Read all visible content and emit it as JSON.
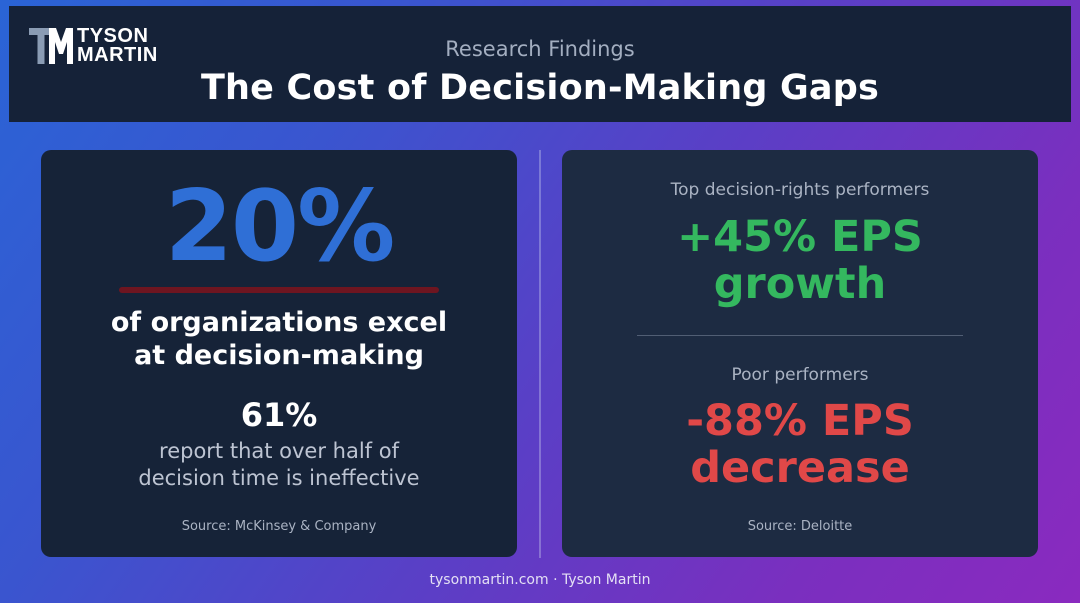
{
  "header": {
    "logo_line1": "TYSON",
    "logo_line2": "MARTIN",
    "subtitle": "Research Findings",
    "title": "The Cost of Decision-Making Gaps"
  },
  "left_card": {
    "big_stat": "20%",
    "big_stat_text_line1": "of organizations excel",
    "big_stat_text_line2": "at decision-making",
    "secondary_stat": "61%",
    "secondary_text_line1": "report that over half of",
    "secondary_text_line2": "decision time is ineffective",
    "source": "Source: McKinsey & Company"
  },
  "right_card": {
    "top_label": "Top decision-rights performers",
    "top_stat_line1": "+45% EPS",
    "top_stat_line2": "growth",
    "bottom_label": "Poor performers",
    "bottom_stat_line1": "-88% EPS",
    "bottom_stat_line2": "decrease",
    "source": "Source: Deloitte"
  },
  "footer": {
    "text": "tysonmartin.com · Tyson Martin"
  },
  "colors": {
    "big_stat": "#2f6fd6",
    "positive": "#34b85f",
    "negative": "#e04848",
    "underline": "#6e1520",
    "header_bg": "#152238"
  },
  "icons": {
    "logo": "tm-monogram-logo-icon"
  }
}
